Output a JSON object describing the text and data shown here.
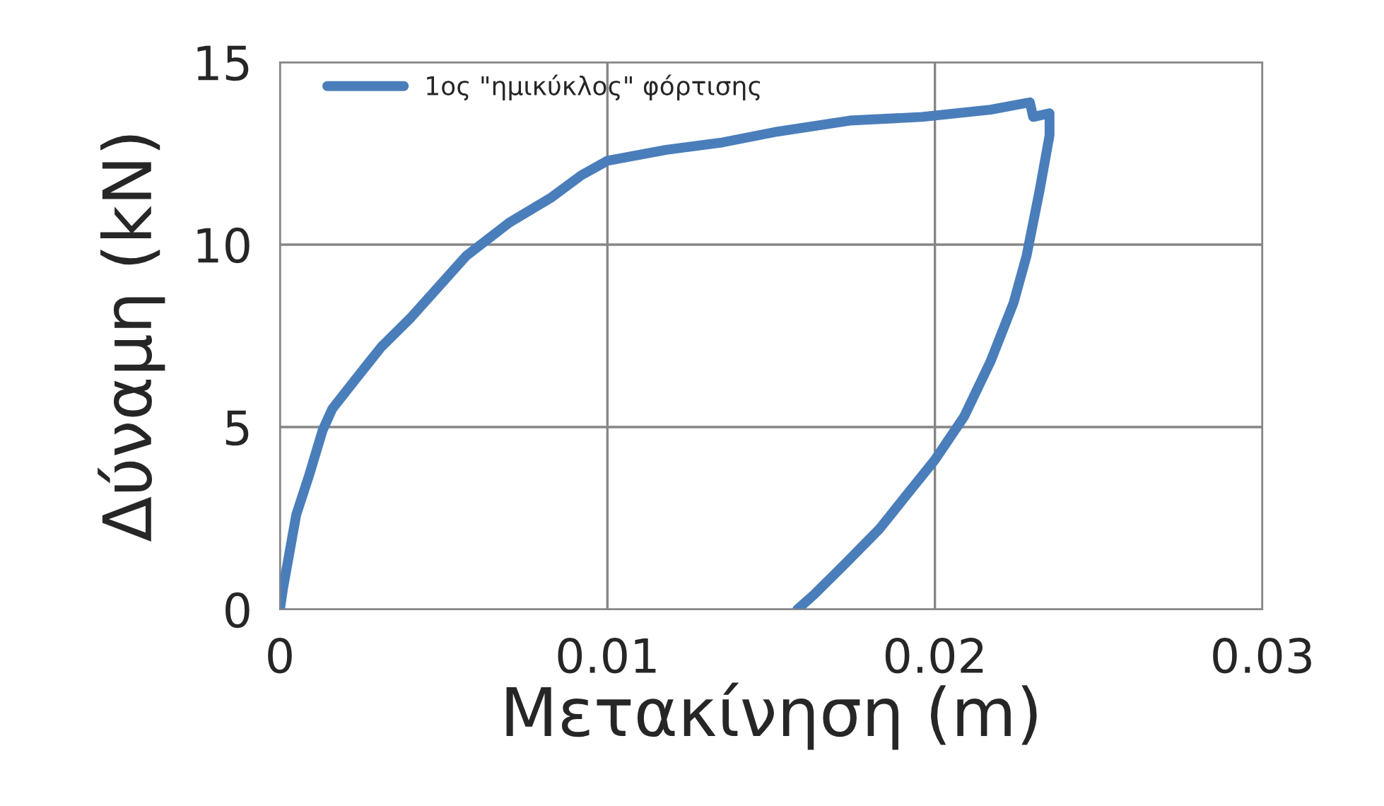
{
  "chart_data": {
    "type": "line",
    "xlabel": "Μετακίνηση (m)",
    "ylabel": "Δύναμη (kN)",
    "xlim": [
      0,
      0.03
    ],
    "ylim": [
      0,
      15
    ],
    "xticks": [
      0,
      0.01,
      0.02,
      0.03
    ],
    "yticks": [
      0,
      5,
      10,
      15
    ],
    "grid": true,
    "legend": "top left",
    "marker": "none",
    "line_style": "solid",
    "series": [
      {
        "name": "1ος \"ημικύκλος\" φόρτισης",
        "color": "#4a7ebb",
        "x": [
          0,
          0.0001,
          0.0003,
          0.0005,
          0.0009,
          0.0013,
          0.0016,
          0.0023,
          0.0031,
          0.004,
          0.0048,
          0.0057,
          0.007,
          0.0083,
          0.0092,
          0.01,
          0.0118,
          0.0135,
          0.0152,
          0.0174,
          0.0196,
          0.0217,
          0.0229,
          0.023,
          0.0235,
          0.0235,
          0.0232,
          0.0228,
          0.0224,
          0.0217,
          0.0209,
          0.02,
          0.0191,
          0.0183,
          0.0172,
          0.0163,
          0.0158
        ],
        "values": [
          0,
          0.6,
          1.6,
          2.6,
          3.7,
          4.9,
          5.5,
          6.3,
          7.2,
          8.0,
          8.8,
          9.7,
          10.6,
          11.3,
          11.9,
          12.3,
          12.6,
          12.8,
          13.1,
          13.4,
          13.5,
          13.7,
          13.9,
          13.5,
          13.6,
          13.0,
          11.5,
          9.7,
          8.4,
          6.8,
          5.3,
          4.1,
          3.1,
          2.2,
          1.2,
          0.4,
          0
        ]
      }
    ]
  }
}
